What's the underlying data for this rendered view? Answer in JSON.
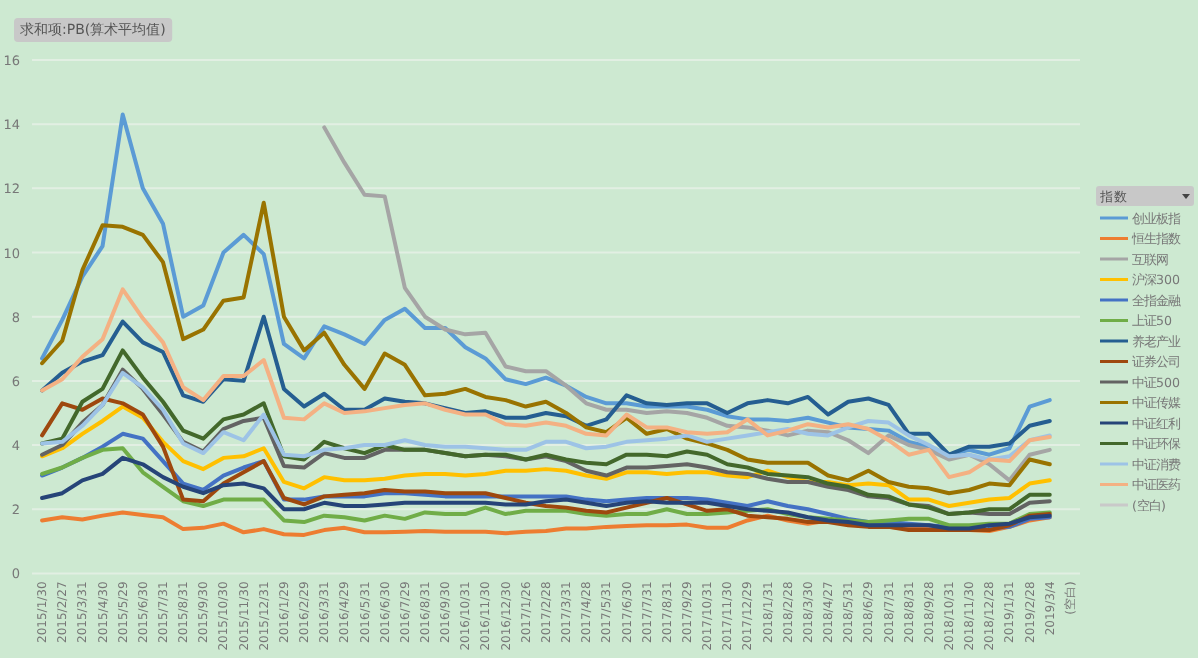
{
  "chart_data": {
    "type": "line",
    "title": "求和项:PB(算术平均值)",
    "legend_title": "指数",
    "legend": "right",
    "grid": "y",
    "ylim": [
      0,
      16
    ],
    "yticks": [
      0,
      2,
      4,
      6,
      8,
      10,
      12,
      14,
      16
    ],
    "categories": [
      "2015/1/30",
      "2015/2/27",
      "2015/3/31",
      "2015/4/30",
      "2015/5/29",
      "2015/6/30",
      "2015/7/31",
      "2015/8/31",
      "2015/9/30",
      "2015/10/30",
      "2015/11/30",
      "2015/12/31",
      "2016/1/29",
      "2016/2/29",
      "2016/3/31",
      "2016/4/29",
      "2016/5/31",
      "2016/6/30",
      "2016/7/29",
      "2016/8/31",
      "2016/9/30",
      "2016/10/31",
      "2016/11/30",
      "2016/12/30",
      "2017/1/26",
      "2017/2/28",
      "2017/3/31",
      "2017/4/28",
      "2017/5/31",
      "2017/6/30",
      "2017/7/31",
      "2017/8/31",
      "2017/9/29",
      "2017/10/31",
      "2017/11/30",
      "2017/12/29",
      "2018/1/31",
      "2018/2/28",
      "2018/3/30",
      "2018/4/27",
      "2018/5/31",
      "2018/6/29",
      "2018/7/31",
      "2018/8/31",
      "2018/9/28",
      "2018/10/31",
      "2018/11/30",
      "2018/12/28",
      "2019/1/31",
      "2019/2/28",
      "2019/3/4",
      "(空白)"
    ],
    "series": [
      {
        "name": "创业板指",
        "color": "#5b9bd5",
        "values": [
          6.7,
          7.9,
          9.25,
          10.2,
          14.3,
          12.0,
          10.9,
          8.0,
          8.35,
          10.0,
          10.55,
          9.95,
          7.15,
          6.7,
          7.7,
          7.45,
          7.15,
          7.9,
          8.25,
          7.65,
          7.65,
          7.05,
          6.7,
          6.05,
          5.9,
          6.1,
          5.85,
          5.5,
          5.3,
          5.3,
          5.2,
          5.2,
          5.2,
          5.1,
          4.9,
          4.8,
          4.8,
          4.75,
          4.85,
          4.7,
          4.55,
          4.5,
          4.45,
          4.1,
          3.95,
          3.7,
          3.85,
          3.7,
          3.9,
          5.2,
          5.4,
          null
        ]
      },
      {
        "name": "恒生指数",
        "color": "#ed7d31",
        "values": [
          1.65,
          1.75,
          1.68,
          1.8,
          1.9,
          1.82,
          1.75,
          1.38,
          1.42,
          1.55,
          1.28,
          1.38,
          1.22,
          1.2,
          1.35,
          1.42,
          1.28,
          1.28,
          1.3,
          1.32,
          1.3,
          1.3,
          1.3,
          1.25,
          1.3,
          1.32,
          1.4,
          1.4,
          1.45,
          1.48,
          1.5,
          1.5,
          1.52,
          1.42,
          1.42,
          1.65,
          1.8,
          1.65,
          1.55,
          1.65,
          1.55,
          1.5,
          1.45,
          1.4,
          1.38,
          1.35,
          1.35,
          1.32,
          1.45,
          1.65,
          1.75,
          null
        ]
      },
      {
        "name": "互联网",
        "color": "#a5a5a5",
        "values": [
          null,
          null,
          null,
          null,
          null,
          null,
          null,
          null,
          null,
          null,
          null,
          null,
          null,
          null,
          13.9,
          12.8,
          11.8,
          11.75,
          8.9,
          8.0,
          7.6,
          7.45,
          7.5,
          6.45,
          6.3,
          6.3,
          5.85,
          5.3,
          5.1,
          5.1,
          5.0,
          5.05,
          5.0,
          4.85,
          4.6,
          4.55,
          4.45,
          4.3,
          4.45,
          4.4,
          4.15,
          3.75,
          4.3,
          4.0,
          3.85,
          3.55,
          3.7,
          3.4,
          2.9,
          3.7,
          3.85,
          null
        ]
      },
      {
        "name": "沪深300",
        "color": "#ffc000",
        "values": [
          3.65,
          3.9,
          4.35,
          4.75,
          5.2,
          4.85,
          4.1,
          3.5,
          3.25,
          3.6,
          3.65,
          3.9,
          2.85,
          2.65,
          3.0,
          2.9,
          2.9,
          2.95,
          3.05,
          3.1,
          3.1,
          3.05,
          3.1,
          3.2,
          3.2,
          3.25,
          3.2,
          3.05,
          2.95,
          3.15,
          3.15,
          3.1,
          3.15,
          3.15,
          3.05,
          3.0,
          3.2,
          3.0,
          2.85,
          2.85,
          2.75,
          2.8,
          2.75,
          2.3,
          2.3,
          2.1,
          2.2,
          2.3,
          2.35,
          2.8,
          2.9,
          null
        ]
      },
      {
        "name": "全指金融",
        "color": "#4472c4",
        "values": [
          3.05,
          3.3,
          3.6,
          3.95,
          4.35,
          4.2,
          3.5,
          2.8,
          2.6,
          3.05,
          3.3,
          3.5,
          2.3,
          2.3,
          2.4,
          2.4,
          2.4,
          2.5,
          2.5,
          2.45,
          2.4,
          2.4,
          2.4,
          2.4,
          2.4,
          2.4,
          2.4,
          2.3,
          2.25,
          2.3,
          2.35,
          2.35,
          2.35,
          2.3,
          2.2,
          2.1,
          2.25,
          2.1,
          2.0,
          1.85,
          1.7,
          1.6,
          1.6,
          1.55,
          1.5,
          1.45,
          null,
          1.4,
          1.45,
          1.7,
          1.75,
          null
        ]
      },
      {
        "name": "上证50",
        "color": "#70ad47",
        "values": [
          3.1,
          3.3,
          3.6,
          3.85,
          3.9,
          3.15,
          2.7,
          2.25,
          2.1,
          2.3,
          2.3,
          2.3,
          1.65,
          1.6,
          1.8,
          1.75,
          1.65,
          1.8,
          1.7,
          1.9,
          1.85,
          1.85,
          2.05,
          1.85,
          1.95,
          1.95,
          1.95,
          1.85,
          1.8,
          1.85,
          1.85,
          2.0,
          1.85,
          1.85,
          1.9,
          1.95,
          2.0,
          1.85,
          1.75,
          1.7,
          1.65,
          1.6,
          1.65,
          1.7,
          1.7,
          1.5,
          1.5,
          1.55,
          1.55,
          1.85,
          1.9,
          null
        ]
      },
      {
        "name": "养老产业",
        "color": "#255e91",
        "values": [
          5.7,
          6.25,
          6.6,
          6.8,
          7.85,
          7.2,
          6.9,
          5.55,
          5.35,
          6.05,
          6.0,
          8.0,
          5.75,
          5.2,
          5.6,
          5.1,
          5.1,
          5.45,
          5.35,
          5.3,
          5.15,
          5.0,
          5.05,
          4.85,
          4.85,
          5.0,
          4.9,
          4.6,
          4.8,
          5.55,
          5.3,
          5.25,
          5.3,
          5.3,
          5.0,
          5.3,
          5.4,
          5.3,
          5.5,
          4.95,
          5.35,
          5.45,
          5.25,
          4.35,
          4.35,
          3.7,
          3.95,
          3.95,
          4.05,
          4.6,
          4.75,
          null
        ]
      },
      {
        "name": "证券公司",
        "color": "#9e480e",
        "values": [
          4.3,
          5.3,
          5.1,
          5.45,
          5.3,
          4.95,
          3.95,
          2.3,
          2.25,
          2.8,
          3.15,
          3.5,
          2.35,
          2.15,
          2.4,
          2.45,
          2.5,
          2.6,
          2.55,
          2.55,
          2.5,
          2.5,
          2.5,
          2.35,
          2.2,
          2.1,
          2.05,
          1.95,
          1.9,
          2.05,
          2.2,
          2.35,
          2.15,
          1.95,
          2.0,
          1.8,
          1.75,
          1.7,
          1.6,
          1.6,
          1.5,
          1.45,
          1.45,
          1.35,
          1.35,
          1.35,
          1.35,
          1.35,
          1.5,
          1.8,
          1.85,
          null
        ]
      },
      {
        "name": "中证500",
        "color": "#636363",
        "values": [
          3.7,
          4.0,
          4.7,
          5.25,
          6.35,
          5.75,
          4.95,
          4.1,
          3.8,
          4.5,
          4.75,
          4.85,
          3.35,
          3.3,
          3.75,
          3.6,
          3.6,
          3.85,
          3.85,
          3.85,
          3.75,
          3.65,
          3.7,
          3.65,
          3.55,
          3.65,
          3.5,
          3.2,
          3.05,
          3.3,
          3.3,
          3.35,
          3.4,
          3.3,
          3.15,
          3.1,
          2.95,
          2.85,
          2.85,
          2.7,
          2.6,
          2.4,
          2.35,
          2.15,
          2.1,
          1.85,
          1.9,
          1.85,
          1.85,
          2.2,
          2.25,
          null
        ]
      },
      {
        "name": "中证传媒",
        "color": "#997300",
        "values": [
          6.55,
          7.25,
          9.45,
          10.85,
          10.8,
          10.55,
          9.7,
          7.3,
          7.6,
          8.5,
          8.6,
          11.55,
          8.0,
          6.95,
          7.5,
          6.5,
          5.75,
          6.85,
          6.5,
          5.55,
          5.6,
          5.75,
          5.5,
          5.4,
          5.2,
          5.35,
          5.0,
          4.55,
          4.4,
          4.85,
          4.35,
          4.5,
          4.2,
          4.05,
          3.85,
          3.55,
          3.45,
          3.45,
          3.45,
          3.05,
          2.9,
          3.2,
          2.85,
          2.7,
          2.65,
          2.5,
          2.6,
          2.8,
          2.75,
          3.55,
          3.4,
          null
        ]
      },
      {
        "name": "中证红利",
        "color": "#264478",
        "values": [
          2.35,
          2.5,
          2.9,
          3.1,
          3.6,
          3.4,
          3.0,
          2.7,
          2.5,
          2.75,
          2.8,
          2.65,
          2.0,
          2.0,
          2.2,
          2.1,
          2.1,
          2.15,
          2.2,
          2.2,
          2.2,
          2.2,
          2.2,
          2.15,
          2.15,
          2.25,
          2.3,
          2.2,
          2.1,
          2.2,
          2.25,
          2.2,
          2.2,
          2.2,
          2.1,
          2.0,
          1.95,
          1.9,
          1.75,
          1.65,
          1.6,
          1.5,
          1.5,
          1.5,
          1.5,
          1.4,
          1.4,
          1.5,
          1.55,
          1.75,
          1.8,
          null
        ]
      },
      {
        "name": "中证环保",
        "color": "#43682b",
        "values": [
          4.05,
          4.2,
          5.35,
          5.75,
          6.95,
          6.1,
          5.35,
          4.45,
          4.2,
          4.8,
          4.95,
          5.3,
          3.65,
          3.55,
          4.1,
          3.9,
          3.75,
          4.0,
          3.85,
          3.85,
          3.75,
          3.65,
          3.7,
          3.7,
          3.55,
          3.7,
          3.55,
          3.45,
          3.4,
          3.7,
          3.7,
          3.65,
          3.8,
          3.7,
          3.4,
          3.3,
          3.1,
          3.05,
          3.0,
          2.8,
          2.7,
          2.45,
          2.4,
          2.15,
          2.05,
          1.85,
          1.9,
          2.0,
          2.0,
          2.45,
          2.45,
          null
        ]
      },
      {
        "name": "中证消费",
        "color": "#9dc3e6",
        "values": [
          4.05,
          4.1,
          4.6,
          5.25,
          6.25,
          5.8,
          5.1,
          4.05,
          3.75,
          4.4,
          4.15,
          4.95,
          3.7,
          3.65,
          3.85,
          3.9,
          4.0,
          4.0,
          4.15,
          4.0,
          3.95,
          3.95,
          3.9,
          3.85,
          3.85,
          4.1,
          4.1,
          3.9,
          3.95,
          4.1,
          4.15,
          4.2,
          4.3,
          4.1,
          4.2,
          4.3,
          4.4,
          4.5,
          4.35,
          4.3,
          4.55,
          4.75,
          4.7,
          4.3,
          4.0,
          3.65,
          3.7,
          3.55,
          3.65,
          4.15,
          4.3,
          null
        ]
      },
      {
        "name": "中证医药",
        "color": "#f4b183",
        "values": [
          5.7,
          6.05,
          6.75,
          7.3,
          8.85,
          7.95,
          7.2,
          5.8,
          5.4,
          6.15,
          6.15,
          6.65,
          4.85,
          4.8,
          5.3,
          5.0,
          5.05,
          5.15,
          5.25,
          5.3,
          5.1,
          4.95,
          4.95,
          4.65,
          4.6,
          4.7,
          4.6,
          4.35,
          4.3,
          4.95,
          4.55,
          4.55,
          4.4,
          4.35,
          4.4,
          4.8,
          4.3,
          4.45,
          4.65,
          4.55,
          4.65,
          4.5,
          4.15,
          3.7,
          3.85,
          3.0,
          3.15,
          3.55,
          3.5,
          4.15,
          4.25,
          null
        ]
      },
      {
        "name": "(空白)",
        "color": "#c9c9c9",
        "values": [
          null,
          null,
          null,
          null,
          null,
          null,
          null,
          null,
          null,
          null,
          null,
          null,
          null,
          null,
          null,
          null,
          null,
          null,
          null,
          null,
          null,
          null,
          null,
          null,
          null,
          null,
          null,
          null,
          null,
          null,
          null,
          null,
          null,
          null,
          null,
          null,
          null,
          null,
          null,
          null,
          null,
          null,
          null,
          null,
          null,
          null,
          null,
          null,
          null,
          null,
          null,
          null
        ]
      }
    ]
  }
}
